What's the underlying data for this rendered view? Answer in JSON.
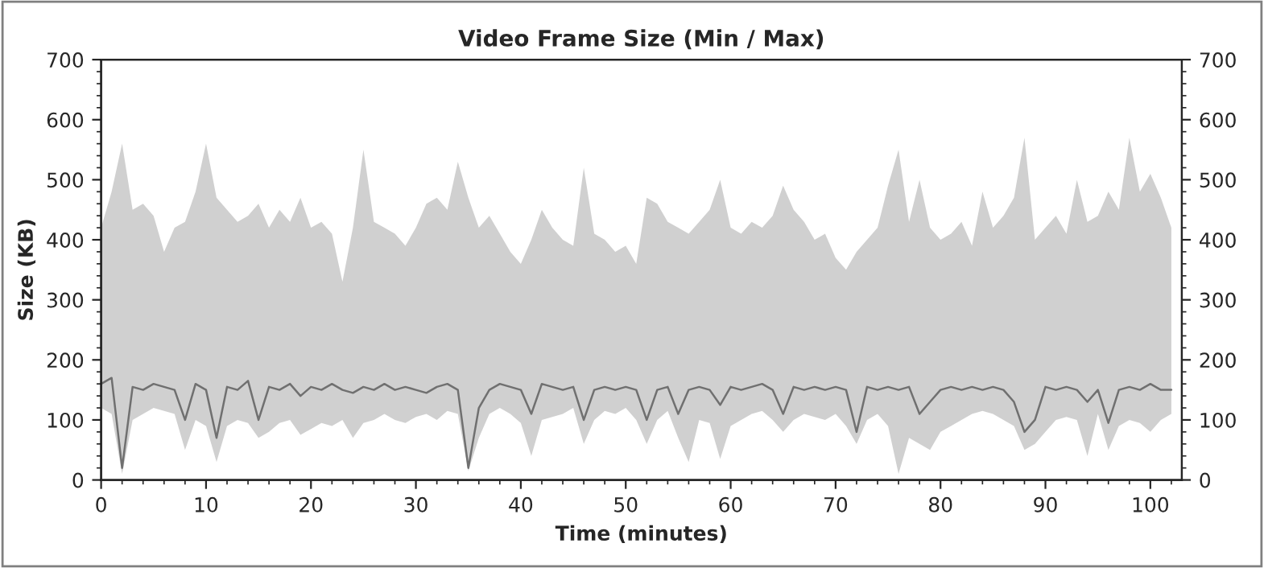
{
  "chart_data": {
    "type": "line",
    "title": "Video Frame Size (Min / Max)",
    "xlabel": "Time (minutes)",
    "ylabel": "Size (KB)",
    "x": [
      0,
      1,
      2,
      3,
      4,
      5,
      6,
      7,
      8,
      9,
      10,
      11,
      12,
      13,
      14,
      15,
      16,
      17,
      18,
      19,
      20,
      21,
      22,
      23,
      24,
      25,
      26,
      27,
      28,
      29,
      30,
      31,
      32,
      33,
      34,
      35,
      36,
      37,
      38,
      39,
      40,
      41,
      42,
      43,
      44,
      45,
      46,
      47,
      48,
      49,
      50,
      51,
      52,
      53,
      54,
      55,
      56,
      57,
      58,
      59,
      60,
      61,
      62,
      63,
      64,
      65,
      66,
      67,
      68,
      69,
      70,
      71,
      72,
      73,
      74,
      75,
      76,
      77,
      78,
      79,
      80,
      81,
      82,
      83,
      84,
      85,
      86,
      87,
      88,
      89,
      90,
      91,
      92,
      93,
      94,
      95,
      96,
      97,
      98,
      99,
      100,
      101,
      102
    ],
    "series": [
      {
        "color": "#707070",
        "values": [
          160,
          170,
          20,
          155,
          150,
          160,
          155,
          150,
          100,
          160,
          150,
          70,
          155,
          150,
          165,
          100,
          155,
          150,
          160,
          140,
          155,
          150,
          160,
          150,
          145,
          155,
          150,
          160,
          150,
          155,
          150,
          145,
          155,
          160,
          150,
          20,
          120,
          150,
          160,
          155,
          150,
          110,
          160,
          155,
          150,
          155,
          100,
          150,
          155,
          150,
          155,
          150,
          100,
          150,
          155,
          110,
          150,
          155,
          150,
          125,
          155,
          150,
          155,
          160,
          150,
          110,
          155,
          150,
          155,
          150,
          155,
          150,
          80,
          155,
          150,
          155,
          150,
          155,
          110,
          130,
          150,
          155,
          150,
          155,
          150,
          155,
          150,
          130,
          80,
          100,
          155,
          150,
          155,
          150,
          130,
          150,
          95,
          150,
          155,
          150,
          160,
          150,
          150
        ],
        "lower": [
          120,
          110,
          10,
          100,
          110,
          120,
          115,
          110,
          50,
          100,
          90,
          30,
          90,
          100,
          95,
          70,
          80,
          95,
          100,
          75,
          85,
          95,
          90,
          100,
          70,
          95,
          100,
          110,
          100,
          95,
          105,
          110,
          100,
          115,
          110,
          15,
          70,
          110,
          120,
          110,
          95,
          40,
          100,
          105,
          110,
          120,
          60,
          100,
          115,
          110,
          120,
          100,
          60,
          100,
          115,
          70,
          30,
          100,
          95,
          35,
          90,
          100,
          110,
          115,
          100,
          80,
          100,
          110,
          105,
          100,
          110,
          90,
          60,
          100,
          110,
          90,
          10,
          70,
          60,
          50,
          80,
          90,
          100,
          110,
          115,
          110,
          100,
          90,
          50,
          60,
          80,
          100,
          105,
          100,
          40,
          110,
          50,
          90,
          100,
          95,
          80,
          100,
          110
        ],
        "upper": [
          420,
          480,
          560,
          450,
          460,
          440,
          380,
          420,
          430,
          480,
          560,
          470,
          450,
          430,
          440,
          460,
          420,
          450,
          430,
          470,
          420,
          430,
          410,
          330,
          420,
          550,
          430,
          420,
          410,
          390,
          420,
          460,
          470,
          450,
          530,
          470,
          420,
          440,
          410,
          380,
          360,
          400,
          450,
          420,
          400,
          390,
          520,
          410,
          400,
          380,
          390,
          360,
          470,
          460,
          430,
          420,
          410,
          430,
          450,
          500,
          420,
          410,
          430,
          420,
          440,
          490,
          450,
          430,
          400,
          410,
          370,
          350,
          380,
          400,
          420,
          490,
          550,
          430,
          500,
          420,
          400,
          410,
          430,
          390,
          480,
          420,
          440,
          470,
          570,
          400,
          420,
          440,
          410,
          500,
          430,
          440,
          480,
          450,
          570,
          480,
          510,
          470,
          420
        ]
      }
    ],
    "xlim": [
      0,
      103
    ],
    "xticks": [
      0,
      10,
      20,
      30,
      40,
      50,
      60,
      70,
      80,
      90,
      100
    ],
    "ylim": [
      0,
      700
    ],
    "yticks": [
      0,
      100,
      200,
      300,
      400,
      500,
      600,
      700
    ],
    "y2lim": [
      0,
      700
    ],
    "y2ticks": [
      0,
      100,
      200,
      300,
      400,
      500,
      600,
      700
    ],
    "grid": false,
    "legend": false
  }
}
